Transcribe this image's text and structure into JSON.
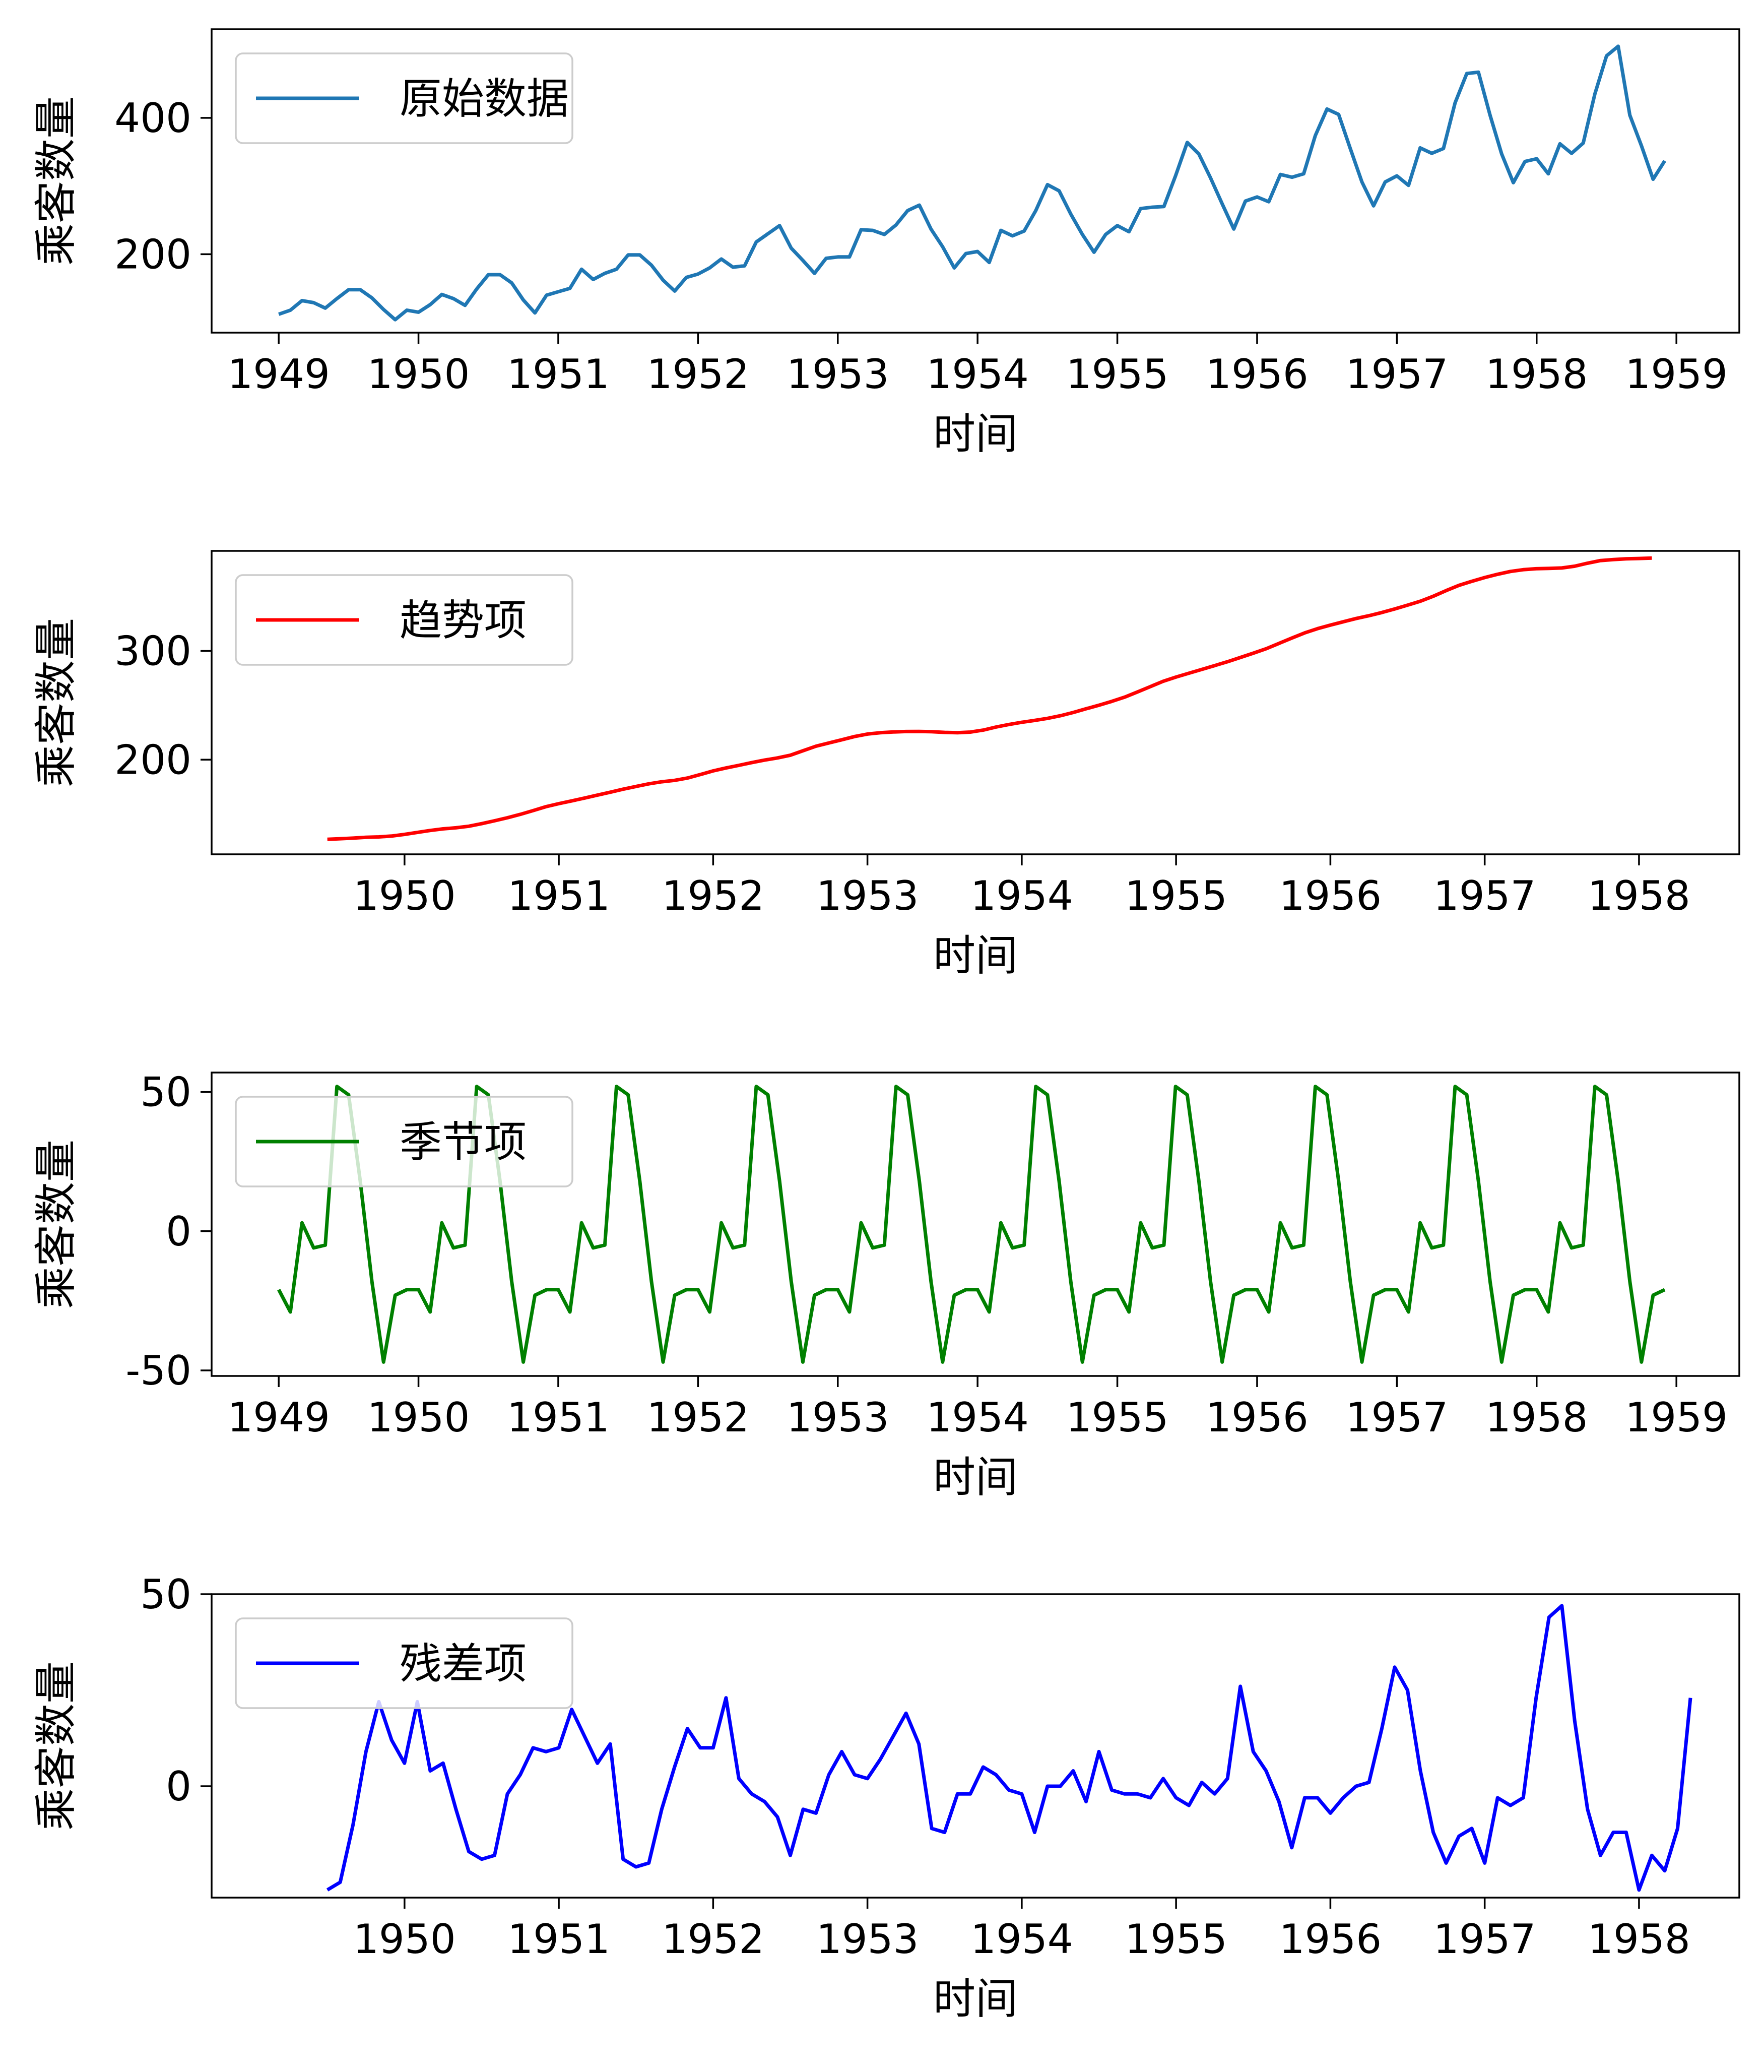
{
  "chart_data": [
    {
      "type": "line",
      "xlabel": "时间",
      "ylabel": "乘客数量",
      "legend_placement": "top-left",
      "grid": false,
      "series": [
        {
          "name": "原始数据",
          "color": "#1f77b4",
          "x_start": 1949.0,
          "x_step": 0.083333,
          "values": [
            112,
            118,
            132,
            129,
            121,
            135,
            148,
            148,
            136,
            119,
            104,
            118,
            115,
            126,
            141,
            135,
            125,
            149,
            170,
            170,
            158,
            133,
            114,
            140,
            145,
            150,
            178,
            163,
            172,
            178,
            199,
            199,
            184,
            162,
            146,
            166,
            171,
            180,
            193,
            181,
            183,
            218,
            230,
            242,
            209,
            191,
            172,
            194,
            196,
            196,
            236,
            235,
            229,
            243,
            264,
            272,
            237,
            211,
            180,
            201,
            204,
            188,
            235,
            227,
            234,
            264,
            302,
            293,
            259,
            229,
            203,
            229,
            242,
            233,
            267,
            269,
            270,
            315,
            364,
            347,
            312,
            274,
            237,
            278,
            284,
            277,
            317,
            313,
            318,
            374,
            413,
            405,
            355,
            306,
            271,
            306,
            315,
            301,
            356,
            348,
            355,
            422,
            465,
            467,
            404,
            347,
            305,
            336,
            340,
            318,
            362,
            348,
            363,
            435,
            491,
            505,
            404,
            359,
            310,
            337
          ]
        }
      ],
      "xlim": [
        1948.52,
        1959.45
      ],
      "ylim": [
        85,
        530
      ],
      "xticks": [
        1949,
        1950,
        1951,
        1952,
        1953,
        1954,
        1955,
        1956,
        1957,
        1958,
        1959
      ],
      "xtick_labels": [
        "1949",
        "1950",
        "1951",
        "1952",
        "1953",
        "1954",
        "1955",
        "1956",
        "1957",
        "1958",
        "1959"
      ],
      "yticks": [
        200,
        400
      ],
      "ytick_labels": [
        "200",
        "400"
      ]
    },
    {
      "type": "line",
      "xlabel": "时间",
      "ylabel": "乘客数量",
      "legend_placement": "top-left",
      "grid": false,
      "series": [
        {
          "name": "趋势项",
          "color": "#ff0000",
          "x_start": 1949.5,
          "x_step": 0.083333,
          "values": [
            126.8,
            127.3,
            127.9,
            128.6,
            129.0,
            129.8,
            131.3,
            133.1,
            134.9,
            136.4,
            137.4,
            138.8,
            141.2,
            143.8,
            146.6,
            149.7,
            153.2,
            156.8,
            159.6,
            162.1,
            164.7,
            167.4,
            170.1,
            172.9,
            175.4,
            177.8,
            179.7,
            181.0,
            183.1,
            186.3,
            189.7,
            192.4,
            194.8,
            197.3,
            199.6,
            201.6,
            204.1,
            208.3,
            212.4,
            215.4,
            218.3,
            221.3,
            223.6,
            224.8,
            225.5,
            225.9,
            226.0,
            225.7,
            225.1,
            224.8,
            225.4,
            227.2,
            230.0,
            232.4,
            234.4,
            236.1,
            238.0,
            240.4,
            243.4,
            246.8,
            250.1,
            253.6,
            257.5,
            262.3,
            267.2,
            272.1,
            276.0,
            279.5,
            283.0,
            286.5,
            290.1,
            294.0,
            297.9,
            302.0,
            306.9,
            311.8,
            316.6,
            320.5,
            323.8,
            326.8,
            329.8,
            332.4,
            335.3,
            338.6,
            342.1,
            345.7,
            350.3,
            355.5,
            360.3,
            364.0,
            367.5,
            370.5,
            373.1,
            374.7,
            375.6,
            375.9,
            376.3,
            377.9,
            380.7,
            383.1,
            384.0,
            384.7,
            385.0,
            385.4
          ]
        }
      ],
      "xlim": [
        1948.75,
        1958.65
      ],
      "ylim": [
        113,
        392
      ],
      "xticks": [
        1950,
        1951,
        1952,
        1953,
        1954,
        1955,
        1956,
        1957,
        1958
      ],
      "xtick_labels": [
        "1950",
        "1951",
        "1952",
        "1953",
        "1954",
        "1955",
        "1956",
        "1957",
        "1958"
      ],
      "yticks": [
        200,
        300
      ],
      "ytick_labels": [
        "200",
        "300"
      ]
    },
    {
      "type": "line",
      "xlabel": "时间",
      "ylabel": "乘客数量",
      "legend_placement": "top-left",
      "grid": false,
      "series": [
        {
          "name": "季节项",
          "color": "#008000",
          "x_start": 1949.0,
          "x_step": 0.083333,
          "seasonal_pattern": [
            -21,
            -29,
            3,
            -6,
            -5,
            52,
            49,
            18,
            -18,
            -47,
            -23,
            -21
          ],
          "values": [
            -21,
            -29,
            3,
            -6,
            -5,
            52,
            49,
            18,
            -18,
            -47,
            -23,
            -21,
            -21,
            -29,
            3,
            -6,
            -5,
            52,
            49,
            18,
            -18,
            -47,
            -23,
            -21,
            -21,
            -29,
            3,
            -6,
            -5,
            52,
            49,
            18,
            -18,
            -47,
            -23,
            -21,
            -21,
            -29,
            3,
            -6,
            -5,
            52,
            49,
            18,
            -18,
            -47,
            -23,
            -21,
            -21,
            -29,
            3,
            -6,
            -5,
            52,
            49,
            18,
            -18,
            -47,
            -23,
            -21,
            -21,
            -29,
            3,
            -6,
            -5,
            52,
            49,
            18,
            -18,
            -47,
            -23,
            -21,
            -21,
            -29,
            3,
            -6,
            -5,
            52,
            49,
            18,
            -18,
            -47,
            -23,
            -21,
            -21,
            -29,
            3,
            -6,
            -5,
            52,
            49,
            18,
            -18,
            -47,
            -23,
            -21,
            -21,
            -29,
            3,
            -6,
            -5,
            52,
            49,
            18,
            -18,
            -47,
            -23,
            -21,
            -21,
            -29,
            3,
            -6,
            -5,
            52,
            49,
            18,
            -18,
            -47,
            -23,
            -21
          ]
        }
      ],
      "xlim": [
        1948.52,
        1959.45
      ],
      "ylim": [
        -52,
        57
      ],
      "xticks": [
        1949,
        1950,
        1951,
        1952,
        1953,
        1954,
        1955,
        1956,
        1957,
        1958,
        1959
      ],
      "xtick_labels": [
        "1949",
        "1950",
        "1951",
        "1952",
        "1953",
        "1954",
        "1955",
        "1956",
        "1957",
        "1958",
        "1959"
      ],
      "yticks": [
        -50,
        0,
        50
      ],
      "ytick_labels": [
        "-50",
        "0",
        "50"
      ]
    },
    {
      "type": "line",
      "xlabel": "时间",
      "ylabel": "乘客数量",
      "legend_placement": "top-left",
      "grid": false,
      "series": [
        {
          "name": "残差项",
          "color": "#0000ff",
          "x_start": 1949.5,
          "x_step": 0.083333,
          "values": [
            -27,
            -25,
            -10,
            9,
            22,
            12,
            6,
            22,
            4,
            6,
            -6,
            -17,
            -19,
            -18,
            -2,
            3,
            10,
            9,
            10,
            20,
            13,
            6,
            11,
            -19,
            -21,
            -20,
            -6,
            5,
            15,
            10,
            10,
            23,
            2,
            -2,
            -4,
            -8,
            -18,
            -6,
            -7,
            3,
            9,
            3,
            2,
            7,
            13,
            19,
            11,
            -11,
            -12,
            -2,
            -2,
            5,
            3,
            -1,
            -2,
            -12,
            0,
            0,
            4,
            -4,
            9,
            -1,
            -2,
            -2,
            -3,
            2,
            -3,
            -5,
            1,
            -2,
            2,
            26,
            9,
            4,
            -4,
            -16,
            -3,
            -3,
            -7,
            -3,
            0,
            1,
            15,
            31,
            25,
            4,
            -12,
            -20,
            -13,
            -11,
            -20,
            -3,
            -5,
            -3,
            23,
            44,
            47,
            17,
            -6,
            -18,
            -12,
            -12,
            -27,
            -18,
            -22,
            -11,
            23
          ]
        }
      ],
      "xlim": [
        1948.75,
        1958.65
      ],
      "ylim": [
        -29,
        50
      ],
      "xticks": [
        1950,
        1951,
        1952,
        1953,
        1954,
        1955,
        1956,
        1957,
        1958
      ],
      "xtick_labels": [
        "1950",
        "1951",
        "1952",
        "1953",
        "1954",
        "1955",
        "1956",
        "1957",
        "1958"
      ],
      "yticks": [
        0,
        50
      ],
      "ytick_labels": [
        "0",
        "50"
      ]
    }
  ]
}
